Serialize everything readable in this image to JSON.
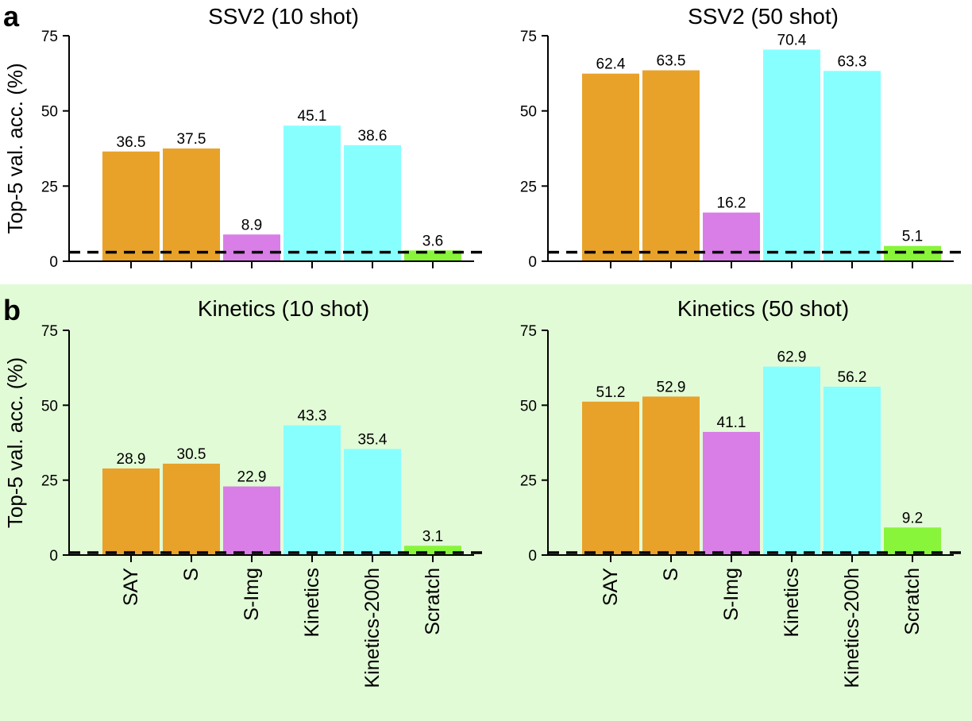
{
  "figure": {
    "panel_labels": [
      "a",
      "b"
    ],
    "ylabel": "Top-5 val. acc. (%)"
  },
  "colors": {
    "SAY": "#e8a22a",
    "S": "#e8a22a",
    "S-Img": "#d97ee6",
    "Kinetics": "#88ffff",
    "Kinetics-200h": "#88ffff",
    "Scratch": "#88f53a",
    "row_b_background": "#e2fbd7"
  },
  "chart_data": [
    {
      "type": "bar",
      "title": "SSV2 (10 shot)",
      "categories": [
        "SAY",
        "S",
        "S-Img",
        "Kinetics",
        "Kinetics-200h",
        "Scratch"
      ],
      "values": [
        36.5,
        37.5,
        8.9,
        45.1,
        38.6,
        3.6
      ],
      "value_labels": [
        "36.5",
        "37.5",
        "8.9",
        "45.1",
        "38.6",
        "3.6"
      ],
      "chance_level": 3.0,
      "ylim": [
        0,
        75
      ],
      "yticks": [
        0,
        25,
        50,
        75
      ],
      "ylabel": "Top-5 val. acc. (%)",
      "xlabel": ""
    },
    {
      "type": "bar",
      "title": "SSV2 (50 shot)",
      "categories": [
        "SAY",
        "S",
        "S-Img",
        "Kinetics",
        "Kinetics-200h",
        "Scratch"
      ],
      "values": [
        62.4,
        63.5,
        16.2,
        70.4,
        63.3,
        5.1
      ],
      "value_labels": [
        "62.4",
        "63.5",
        "16.2",
        "70.4",
        "63.3",
        "5.1"
      ],
      "chance_level": 3.0,
      "ylim": [
        0,
        75
      ],
      "yticks": [
        0,
        25,
        50,
        75
      ],
      "ylabel": "",
      "xlabel": ""
    },
    {
      "type": "bar",
      "title": "Kinetics (10 shot)",
      "categories": [
        "SAY",
        "S",
        "S-Img",
        "Kinetics",
        "Kinetics-200h",
        "Scratch"
      ],
      "values": [
        28.9,
        30.5,
        22.9,
        43.3,
        35.4,
        3.1
      ],
      "value_labels": [
        "28.9",
        "30.5",
        "22.9",
        "43.3",
        "35.4",
        "3.1"
      ],
      "chance_level": 0.8,
      "ylim": [
        0,
        75
      ],
      "yticks": [
        0,
        25,
        50,
        75
      ],
      "ylabel": "Top-5 val. acc. (%)",
      "xlabel": ""
    },
    {
      "type": "bar",
      "title": "Kinetics (50 shot)",
      "categories": [
        "SAY",
        "S",
        "S-Img",
        "Kinetics",
        "Kinetics-200h",
        "Scratch"
      ],
      "values": [
        51.2,
        52.9,
        41.1,
        62.9,
        56.2,
        9.2
      ],
      "value_labels": [
        "51.2",
        "52.9",
        "41.1",
        "62.9",
        "56.2",
        "9.2"
      ],
      "chance_level": 0.8,
      "ylim": [
        0,
        75
      ],
      "yticks": [
        0,
        25,
        50,
        75
      ],
      "ylabel": "",
      "xlabel": ""
    }
  ]
}
